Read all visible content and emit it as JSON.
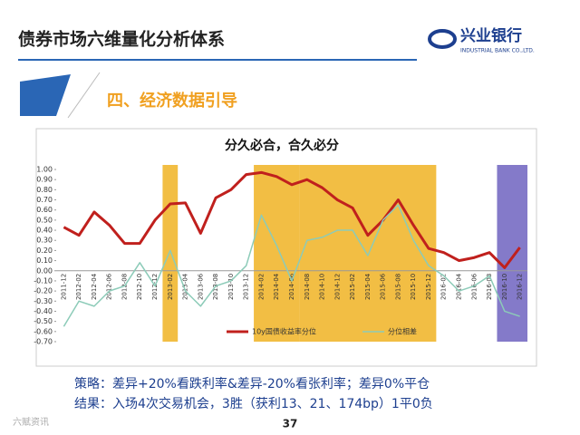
{
  "header": {
    "title": "债券市场六维量化分析体系",
    "logo": "兴业银行",
    "logo_sub": "INDUSTRIAL BANK CO.,LTD."
  },
  "section": "四、经济数据引导",
  "chart_data": {
    "type": "line",
    "title": "分久必合，合久必分",
    "categories": [
      "2011-12",
      "2012-02",
      "2012-04",
      "2012-06",
      "2012-08",
      "2012-10",
      "2012-12",
      "2013-02",
      "2013-04",
      "2013-06",
      "2013-08",
      "2013-10",
      "2013-12",
      "2014-02",
      "2014-04",
      "2014-06",
      "2014-08",
      "2014-10",
      "2014-12",
      "2015-02",
      "2015-04",
      "2015-06",
      "2015-08",
      "2015-10",
      "2015-12",
      "2016-02",
      "2016-04",
      "2016-06",
      "2016-08",
      "2016-10",
      "2016-12"
    ],
    "series": [
      {
        "name": "10y国债收益率分位",
        "color": "#c0201d",
        "values": [
          0.43,
          0.35,
          0.58,
          0.45,
          0.27,
          0.27,
          0.5,
          0.66,
          0.67,
          0.37,
          0.72,
          0.8,
          0.95,
          0.97,
          0.93,
          0.85,
          0.9,
          0.82,
          0.7,
          0.62,
          0.35,
          0.5,
          0.7,
          0.45,
          0.22,
          0.18,
          0.1,
          0.13,
          0.18,
          0.03,
          0.23
        ]
      },
      {
        "name": "分位相差",
        "color": "#8ccbb8",
        "values": [
          -0.55,
          -0.3,
          -0.35,
          -0.2,
          -0.15,
          0.08,
          -0.15,
          0.2,
          -0.2,
          -0.35,
          -0.15,
          -0.1,
          0.05,
          0.55,
          0.25,
          -0.1,
          0.3,
          0.33,
          0.4,
          0.4,
          0.15,
          0.5,
          0.65,
          0.3,
          0.05,
          -0.05,
          -0.2,
          -0.15,
          -0.05,
          -0.4,
          -0.45
        ]
      }
    ],
    "highlights": [
      {
        "from": "2013-02",
        "to": "2013-02",
        "color": "#f0b323"
      },
      {
        "from": "2014-02",
        "to": "2014-06",
        "color": "#f0b323"
      },
      {
        "from": "2014-08",
        "to": "2015-12",
        "color": "#f0b323"
      },
      {
        "from": "2016-10",
        "to": "2016-12",
        "color": "#6f63c0"
      }
    ],
    "ylim": [
      -0.7,
      1.0
    ],
    "yticks": [
      {
        "value": 1.0,
        "label": "1.00"
      },
      {
        "value": 0.9,
        "label": "0.90"
      },
      {
        "value": 0.8,
        "label": "0.80"
      },
      {
        "value": 0.7,
        "label": "0.70"
      },
      {
        "value": 0.6,
        "label": "0.60"
      },
      {
        "value": 0.5,
        "label": "0.50"
      },
      {
        "value": 0.4,
        "label": "0.40"
      },
      {
        "value": 0.3,
        "label": "0.30"
      },
      {
        "value": 0.2,
        "label": "0.20"
      },
      {
        "value": 0.1,
        "label": "0.10"
      },
      {
        "value": 0,
        "label": "0.00"
      },
      {
        "value": -0.1,
        "label": "-0.10"
      },
      {
        "value": -0.2,
        "label": "-0.20"
      },
      {
        "value": -0.3,
        "label": "-0.30"
      },
      {
        "value": -0.4,
        "label": "-0.40"
      },
      {
        "value": -0.5,
        "label": "-0.50"
      },
      {
        "value": -0.6,
        "label": "-0.60"
      },
      {
        "value": -0.7,
        "label": "-0.70"
      }
    ],
    "legend": "bottom"
  },
  "notes": [
    "策略：差异+20%看跌利率&差异-20%看张利率；差异0%平仓",
    "结果：入场4次交易机会，3胜（获利13、21、174bp）1平0负"
  ],
  "page_number": "37",
  "watermark": "六赋资讯"
}
